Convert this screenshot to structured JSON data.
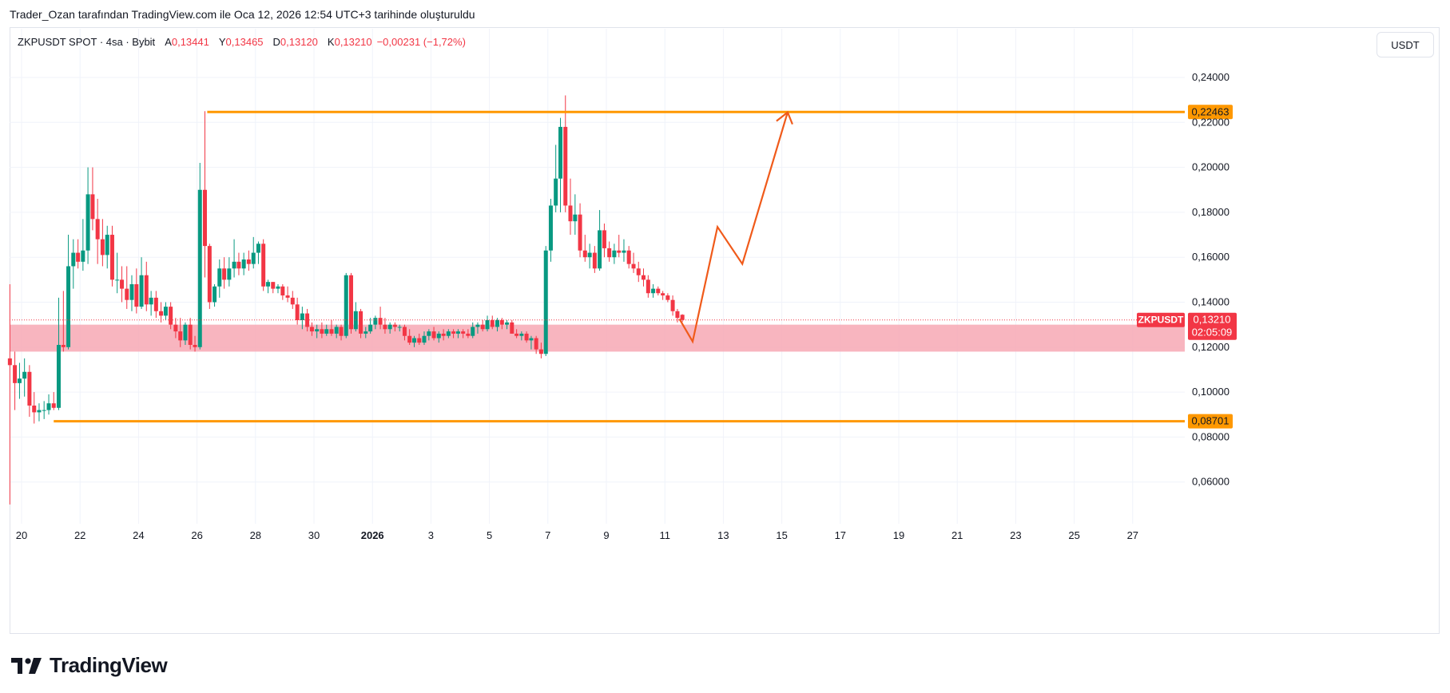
{
  "caption": "Trader_Ozan tarafından TradingView.com ile Oca 12, 2026 12:54 UTC+3 tarihinde oluşturuldu",
  "legend": {
    "symbol": "ZKPUSDT SPOT · 4sa · Bybit",
    "open_label": "A",
    "open": "0,13441",
    "high_label": "Y",
    "high": "0,13465",
    "low_label": "D",
    "low": "0,13120",
    "close_label": "K",
    "close": "0,13210",
    "change": "−0,00231 (−1,72%)"
  },
  "currency_button": "USDT",
  "brand": "TradingView",
  "colors": {
    "up": "#089981",
    "down": "#f23645",
    "level": "#ff9800",
    "zone": "#f7a8b4",
    "projection": "#f05a1a",
    "grid": "#f0f3fa"
  },
  "chart_data": {
    "type": "candlestick",
    "interval": "4h",
    "y_axis": {
      "min": 0.05,
      "max": 0.25,
      "ticks": [
        "0,24000",
        "0,22000",
        "0,20000",
        "0,18000",
        "0,16000",
        "0,14000",
        "0,12000",
        "0,10000",
        "0,08000",
        "0,06000"
      ]
    },
    "x_axis_ticks": [
      "20",
      "22",
      "24",
      "26",
      "28",
      "30",
      "2026",
      "3",
      "5",
      "7",
      "9",
      "11",
      "13",
      "15",
      "17",
      "19",
      "21",
      "23",
      "25",
      "27"
    ],
    "levels": [
      {
        "price": 0.22463,
        "label": "0,22463",
        "from_day": 6.35
      },
      {
        "price": 0.08701,
        "label": "0,08701",
        "from_day": 1.1
      }
    ],
    "zone": {
      "from": 0.118,
      "to": 0.13,
      "from_day": 0
    },
    "last_price": {
      "symbol": "ZKPUSDT",
      "value": 0.1321,
      "label": "0,13210",
      "countdown": "02:05:09"
    },
    "projection_path": [
      {
        "day": 22.5,
        "price": 0.1325
      },
      {
        "day": 22.95,
        "price": 0.1225
      },
      {
        "day": 23.8,
        "price": 0.1735
      },
      {
        "day": 24.65,
        "price": 0.157
      },
      {
        "day": 26.2,
        "price": 0.2245
      }
    ],
    "candles_note": "day = days since Dec 20; OHLC approximate",
    "candles": [
      {
        "day": -0.4,
        "o": 0.115,
        "h": 0.148,
        "l": 0.05,
        "c": 0.112
      },
      {
        "day": -0.23,
        "o": 0.112,
        "h": 0.118,
        "l": 0.092,
        "c": 0.104
      },
      {
        "day": -0.07,
        "o": 0.104,
        "h": 0.113,
        "l": 0.097,
        "c": 0.106
      },
      {
        "day": 0.1,
        "o": 0.106,
        "h": 0.115,
        "l": 0.098,
        "c": 0.109
      },
      {
        "day": 0.27,
        "o": 0.109,
        "h": 0.112,
        "l": 0.089,
        "c": 0.094
      },
      {
        "day": 0.43,
        "o": 0.094,
        "h": 0.1,
        "l": 0.086,
        "c": 0.091
      },
      {
        "day": 0.6,
        "o": 0.091,
        "h": 0.095,
        "l": 0.087,
        "c": 0.092
      },
      {
        "day": 0.77,
        "o": 0.092,
        "h": 0.096,
        "l": 0.088,
        "c": 0.092
      },
      {
        "day": 0.93,
        "o": 0.092,
        "h": 0.099,
        "l": 0.09,
        "c": 0.095
      },
      {
        "day": 1.1,
        "o": 0.095,
        "h": 0.1,
        "l": 0.092,
        "c": 0.093
      },
      {
        "day": 1.27,
        "o": 0.093,
        "h": 0.142,
        "l": 0.092,
        "c": 0.121
      },
      {
        "day": 1.43,
        "o": 0.121,
        "h": 0.145,
        "l": 0.118,
        "c": 0.12
      },
      {
        "day": 1.6,
        "o": 0.12,
        "h": 0.17,
        "l": 0.119,
        "c": 0.156
      },
      {
        "day": 1.77,
        "o": 0.156,
        "h": 0.168,
        "l": 0.146,
        "c": 0.162
      },
      {
        "day": 1.93,
        "o": 0.162,
        "h": 0.168,
        "l": 0.155,
        "c": 0.158
      },
      {
        "day": 2.1,
        "o": 0.158,
        "h": 0.177,
        "l": 0.154,
        "c": 0.163
      },
      {
        "day": 2.27,
        "o": 0.163,
        "h": 0.2,
        "l": 0.157,
        "c": 0.188
      },
      {
        "day": 2.43,
        "o": 0.188,
        "h": 0.2,
        "l": 0.172,
        "c": 0.177
      },
      {
        "day": 2.6,
        "o": 0.177,
        "h": 0.186,
        "l": 0.157,
        "c": 0.168
      },
      {
        "day": 2.77,
        "o": 0.168,
        "h": 0.177,
        "l": 0.156,
        "c": 0.161
      },
      {
        "day": 2.93,
        "o": 0.161,
        "h": 0.174,
        "l": 0.155,
        "c": 0.17
      },
      {
        "day": 3.1,
        "o": 0.17,
        "h": 0.174,
        "l": 0.147,
        "c": 0.15
      },
      {
        "day": 3.27,
        "o": 0.15,
        "h": 0.162,
        "l": 0.144,
        "c": 0.15
      },
      {
        "day": 3.43,
        "o": 0.15,
        "h": 0.156,
        "l": 0.14,
        "c": 0.146
      },
      {
        "day": 3.6,
        "o": 0.146,
        "h": 0.156,
        "l": 0.137,
        "c": 0.141
      },
      {
        "day": 3.77,
        "o": 0.141,
        "h": 0.152,
        "l": 0.136,
        "c": 0.148
      },
      {
        "day": 3.93,
        "o": 0.148,
        "h": 0.155,
        "l": 0.135,
        "c": 0.138
      },
      {
        "day": 4.1,
        "o": 0.138,
        "h": 0.16,
        "l": 0.137,
        "c": 0.152
      },
      {
        "day": 4.27,
        "o": 0.152,
        "h": 0.158,
        "l": 0.136,
        "c": 0.139
      },
      {
        "day": 4.43,
        "o": 0.139,
        "h": 0.145,
        "l": 0.134,
        "c": 0.142
      },
      {
        "day": 4.6,
        "o": 0.142,
        "h": 0.145,
        "l": 0.133,
        "c": 0.136
      },
      {
        "day": 4.77,
        "o": 0.136,
        "h": 0.14,
        "l": 0.131,
        "c": 0.134
      },
      {
        "day": 4.93,
        "o": 0.134,
        "h": 0.14,
        "l": 0.132,
        "c": 0.138
      },
      {
        "day": 5.1,
        "o": 0.138,
        "h": 0.14,
        "l": 0.128,
        "c": 0.13
      },
      {
        "day": 5.27,
        "o": 0.13,
        "h": 0.133,
        "l": 0.124,
        "c": 0.127
      },
      {
        "day": 5.43,
        "o": 0.127,
        "h": 0.133,
        "l": 0.12,
        "c": 0.123
      },
      {
        "day": 5.6,
        "o": 0.123,
        "h": 0.131,
        "l": 0.121,
        "c": 0.13
      },
      {
        "day": 5.77,
        "o": 0.13,
        "h": 0.133,
        "l": 0.119,
        "c": 0.121
      },
      {
        "day": 5.93,
        "o": 0.121,
        "h": 0.125,
        "l": 0.118,
        "c": 0.12
      },
      {
        "day": 6.1,
        "o": 0.12,
        "h": 0.202,
        "l": 0.119,
        "c": 0.19
      },
      {
        "day": 6.27,
        "o": 0.19,
        "h": 0.225,
        "l": 0.151,
        "c": 0.165
      },
      {
        "day": 6.43,
        "o": 0.165,
        "h": 0.166,
        "l": 0.137,
        "c": 0.14
      },
      {
        "day": 6.6,
        "o": 0.14,
        "h": 0.148,
        "l": 0.138,
        "c": 0.147
      },
      {
        "day": 6.77,
        "o": 0.147,
        "h": 0.159,
        "l": 0.142,
        "c": 0.155
      },
      {
        "day": 6.93,
        "o": 0.155,
        "h": 0.16,
        "l": 0.146,
        "c": 0.15
      },
      {
        "day": 7.1,
        "o": 0.15,
        "h": 0.16,
        "l": 0.147,
        "c": 0.155
      },
      {
        "day": 7.27,
        "o": 0.155,
        "h": 0.168,
        "l": 0.151,
        "c": 0.158
      },
      {
        "day": 7.43,
        "o": 0.158,
        "h": 0.162,
        "l": 0.152,
        "c": 0.155
      },
      {
        "day": 7.6,
        "o": 0.155,
        "h": 0.162,
        "l": 0.152,
        "c": 0.159
      },
      {
        "day": 7.77,
        "o": 0.159,
        "h": 0.163,
        "l": 0.154,
        "c": 0.157
      },
      {
        "day": 7.93,
        "o": 0.157,
        "h": 0.169,
        "l": 0.155,
        "c": 0.162
      },
      {
        "day": 8.1,
        "o": 0.162,
        "h": 0.167,
        "l": 0.157,
        "c": 0.166
      },
      {
        "day": 8.27,
        "o": 0.166,
        "h": 0.168,
        "l": 0.145,
        "c": 0.147
      },
      {
        "day": 8.43,
        "o": 0.147,
        "h": 0.15,
        "l": 0.144,
        "c": 0.149
      },
      {
        "day": 8.6,
        "o": 0.149,
        "h": 0.149,
        "l": 0.144,
        "c": 0.146
      },
      {
        "day": 8.77,
        "o": 0.146,
        "h": 0.148,
        "l": 0.144,
        "c": 0.147
      },
      {
        "day": 8.93,
        "o": 0.147,
        "h": 0.148,
        "l": 0.141,
        "c": 0.143
      },
      {
        "day": 9.1,
        "o": 0.143,
        "h": 0.147,
        "l": 0.14,
        "c": 0.142
      },
      {
        "day": 9.27,
        "o": 0.142,
        "h": 0.145,
        "l": 0.137,
        "c": 0.139
      },
      {
        "day": 9.43,
        "o": 0.139,
        "h": 0.142,
        "l": 0.13,
        "c": 0.132
      },
      {
        "day": 9.6,
        "o": 0.132,
        "h": 0.138,
        "l": 0.128,
        "c": 0.135
      },
      {
        "day": 9.77,
        "o": 0.135,
        "h": 0.137,
        "l": 0.127,
        "c": 0.129
      },
      {
        "day": 9.93,
        "o": 0.129,
        "h": 0.131,
        "l": 0.125,
        "c": 0.127
      },
      {
        "day": 10.1,
        "o": 0.127,
        "h": 0.13,
        "l": 0.124,
        "c": 0.128
      },
      {
        "day": 10.27,
        "o": 0.128,
        "h": 0.131,
        "l": 0.124,
        "c": 0.126
      },
      {
        "day": 10.43,
        "o": 0.126,
        "h": 0.13,
        "l": 0.125,
        "c": 0.128
      },
      {
        "day": 10.6,
        "o": 0.128,
        "h": 0.132,
        "l": 0.125,
        "c": 0.126
      },
      {
        "day": 10.77,
        "o": 0.126,
        "h": 0.13,
        "l": 0.124,
        "c": 0.129
      },
      {
        "day": 10.93,
        "o": 0.129,
        "h": 0.13,
        "l": 0.123,
        "c": 0.125
      },
      {
        "day": 11.1,
        "o": 0.125,
        "h": 0.153,
        "l": 0.124,
        "c": 0.152
      },
      {
        "day": 11.27,
        "o": 0.152,
        "h": 0.153,
        "l": 0.126,
        "c": 0.128
      },
      {
        "day": 11.43,
        "o": 0.128,
        "h": 0.14,
        "l": 0.127,
        "c": 0.136
      },
      {
        "day": 11.6,
        "o": 0.136,
        "h": 0.137,
        "l": 0.124,
        "c": 0.126
      },
      {
        "day": 11.77,
        "o": 0.126,
        "h": 0.129,
        "l": 0.124,
        "c": 0.127
      },
      {
        "day": 11.93,
        "o": 0.127,
        "h": 0.133,
        "l": 0.126,
        "c": 0.13
      },
      {
        "day": 12.1,
        "o": 0.13,
        "h": 0.134,
        "l": 0.128,
        "c": 0.133
      },
      {
        "day": 12.27,
        "o": 0.133,
        "h": 0.138,
        "l": 0.128,
        "c": 0.13
      },
      {
        "day": 12.43,
        "o": 0.13,
        "h": 0.133,
        "l": 0.126,
        "c": 0.128
      },
      {
        "day": 12.6,
        "o": 0.128,
        "h": 0.131,
        "l": 0.126,
        "c": 0.13
      },
      {
        "day": 12.77,
        "o": 0.13,
        "h": 0.131,
        "l": 0.127,
        "c": 0.129
      },
      {
        "day": 12.93,
        "o": 0.129,
        "h": 0.13,
        "l": 0.127,
        "c": 0.129
      },
      {
        "day": 13.1,
        "o": 0.129,
        "h": 0.13,
        "l": 0.123,
        "c": 0.125
      },
      {
        "day": 13.27,
        "o": 0.125,
        "h": 0.128,
        "l": 0.121,
        "c": 0.122
      },
      {
        "day": 13.43,
        "o": 0.122,
        "h": 0.125,
        "l": 0.12,
        "c": 0.124
      },
      {
        "day": 13.6,
        "o": 0.124,
        "h": 0.126,
        "l": 0.121,
        "c": 0.122
      },
      {
        "day": 13.77,
        "o": 0.122,
        "h": 0.127,
        "l": 0.121,
        "c": 0.125
      },
      {
        "day": 13.93,
        "o": 0.125,
        "h": 0.128,
        "l": 0.123,
        "c": 0.127
      },
      {
        "day": 14.1,
        "o": 0.127,
        "h": 0.129,
        "l": 0.123,
        "c": 0.124
      },
      {
        "day": 14.27,
        "o": 0.124,
        "h": 0.127,
        "l": 0.122,
        "c": 0.126
      },
      {
        "day": 14.43,
        "o": 0.126,
        "h": 0.128,
        "l": 0.123,
        "c": 0.125
      },
      {
        "day": 14.6,
        "o": 0.125,
        "h": 0.128,
        "l": 0.124,
        "c": 0.127
      },
      {
        "day": 14.77,
        "o": 0.127,
        "h": 0.128,
        "l": 0.124,
        "c": 0.126
      },
      {
        "day": 14.93,
        "o": 0.126,
        "h": 0.128,
        "l": 0.124,
        "c": 0.127
      },
      {
        "day": 15.1,
        "o": 0.127,
        "h": 0.128,
        "l": 0.124,
        "c": 0.126
      },
      {
        "day": 15.27,
        "o": 0.126,
        "h": 0.128,
        "l": 0.124,
        "c": 0.125
      },
      {
        "day": 15.43,
        "o": 0.125,
        "h": 0.131,
        "l": 0.124,
        "c": 0.129
      },
      {
        "day": 15.6,
        "o": 0.129,
        "h": 0.131,
        "l": 0.126,
        "c": 0.13
      },
      {
        "day": 15.77,
        "o": 0.13,
        "h": 0.132,
        "l": 0.127,
        "c": 0.128
      },
      {
        "day": 15.93,
        "o": 0.128,
        "h": 0.134,
        "l": 0.127,
        "c": 0.132
      },
      {
        "day": 16.1,
        "o": 0.132,
        "h": 0.134,
        "l": 0.128,
        "c": 0.129
      },
      {
        "day": 16.27,
        "o": 0.129,
        "h": 0.133,
        "l": 0.127,
        "c": 0.132
      },
      {
        "day": 16.43,
        "o": 0.132,
        "h": 0.133,
        "l": 0.128,
        "c": 0.13
      },
      {
        "day": 16.6,
        "o": 0.13,
        "h": 0.132,
        "l": 0.128,
        "c": 0.131
      },
      {
        "day": 16.77,
        "o": 0.131,
        "h": 0.132,
        "l": 0.126,
        "c": 0.126
      },
      {
        "day": 16.93,
        "o": 0.126,
        "h": 0.128,
        "l": 0.124,
        "c": 0.125
      },
      {
        "day": 17.1,
        "o": 0.125,
        "h": 0.127,
        "l": 0.123,
        "c": 0.126
      },
      {
        "day": 17.27,
        "o": 0.126,
        "h": 0.127,
        "l": 0.122,
        "c": 0.123
      },
      {
        "day": 17.43,
        "o": 0.123,
        "h": 0.125,
        "l": 0.119,
        "c": 0.124
      },
      {
        "day": 17.6,
        "o": 0.124,
        "h": 0.125,
        "l": 0.117,
        "c": 0.119
      },
      {
        "day": 17.77,
        "o": 0.119,
        "h": 0.122,
        "l": 0.115,
        "c": 0.117
      },
      {
        "day": 17.93,
        "o": 0.117,
        "h": 0.165,
        "l": 0.116,
        "c": 0.163
      },
      {
        "day": 18.1,
        "o": 0.163,
        "h": 0.186,
        "l": 0.158,
        "c": 0.183
      },
      {
        "day": 18.27,
        "o": 0.183,
        "h": 0.21,
        "l": 0.18,
        "c": 0.195
      },
      {
        "day": 18.43,
        "o": 0.195,
        "h": 0.222,
        "l": 0.18,
        "c": 0.218
      },
      {
        "day": 18.6,
        "o": 0.218,
        "h": 0.232,
        "l": 0.18,
        "c": 0.183
      },
      {
        "day": 18.77,
        "o": 0.183,
        "h": 0.195,
        "l": 0.17,
        "c": 0.176
      },
      {
        "day": 18.93,
        "o": 0.176,
        "h": 0.188,
        "l": 0.17,
        "c": 0.179
      },
      {
        "day": 19.1,
        "o": 0.179,
        "h": 0.184,
        "l": 0.16,
        "c": 0.163
      },
      {
        "day": 19.27,
        "o": 0.163,
        "h": 0.17,
        "l": 0.158,
        "c": 0.16
      },
      {
        "day": 19.43,
        "o": 0.16,
        "h": 0.166,
        "l": 0.155,
        "c": 0.162
      },
      {
        "day": 19.6,
        "o": 0.162,
        "h": 0.165,
        "l": 0.153,
        "c": 0.155
      },
      {
        "day": 19.77,
        "o": 0.155,
        "h": 0.181,
        "l": 0.154,
        "c": 0.172
      },
      {
        "day": 19.93,
        "o": 0.172,
        "h": 0.175,
        "l": 0.16,
        "c": 0.164
      },
      {
        "day": 20.1,
        "o": 0.164,
        "h": 0.167,
        "l": 0.158,
        "c": 0.16
      },
      {
        "day": 20.27,
        "o": 0.16,
        "h": 0.166,
        "l": 0.157,
        "c": 0.163
      },
      {
        "day": 20.43,
        "o": 0.163,
        "h": 0.17,
        "l": 0.16,
        "c": 0.162
      },
      {
        "day": 20.6,
        "o": 0.162,
        "h": 0.168,
        "l": 0.158,
        "c": 0.163
      },
      {
        "day": 20.77,
        "o": 0.163,
        "h": 0.165,
        "l": 0.155,
        "c": 0.157
      },
      {
        "day": 20.93,
        "o": 0.157,
        "h": 0.162,
        "l": 0.153,
        "c": 0.155
      },
      {
        "day": 21.1,
        "o": 0.155,
        "h": 0.158,
        "l": 0.149,
        "c": 0.152
      },
      {
        "day": 21.27,
        "o": 0.152,
        "h": 0.155,
        "l": 0.147,
        "c": 0.15
      },
      {
        "day": 21.43,
        "o": 0.15,
        "h": 0.152,
        "l": 0.142,
        "c": 0.144
      },
      {
        "day": 21.6,
        "o": 0.144,
        "h": 0.148,
        "l": 0.142,
        "c": 0.146
      },
      {
        "day": 21.77,
        "o": 0.146,
        "h": 0.147,
        "l": 0.143,
        "c": 0.144
      },
      {
        "day": 21.93,
        "o": 0.144,
        "h": 0.145,
        "l": 0.141,
        "c": 0.143
      },
      {
        "day": 22.1,
        "o": 0.143,
        "h": 0.144,
        "l": 0.14,
        "c": 0.141
      },
      {
        "day": 22.27,
        "o": 0.141,
        "h": 0.143,
        "l": 0.134,
        "c": 0.136
      },
      {
        "day": 22.43,
        "o": 0.136,
        "h": 0.137,
        "l": 0.131,
        "c": 0.133
      },
      {
        "day": 22.6,
        "o": 0.13441,
        "h": 0.13465,
        "l": 0.1312,
        "c": 0.1321
      }
    ]
  }
}
